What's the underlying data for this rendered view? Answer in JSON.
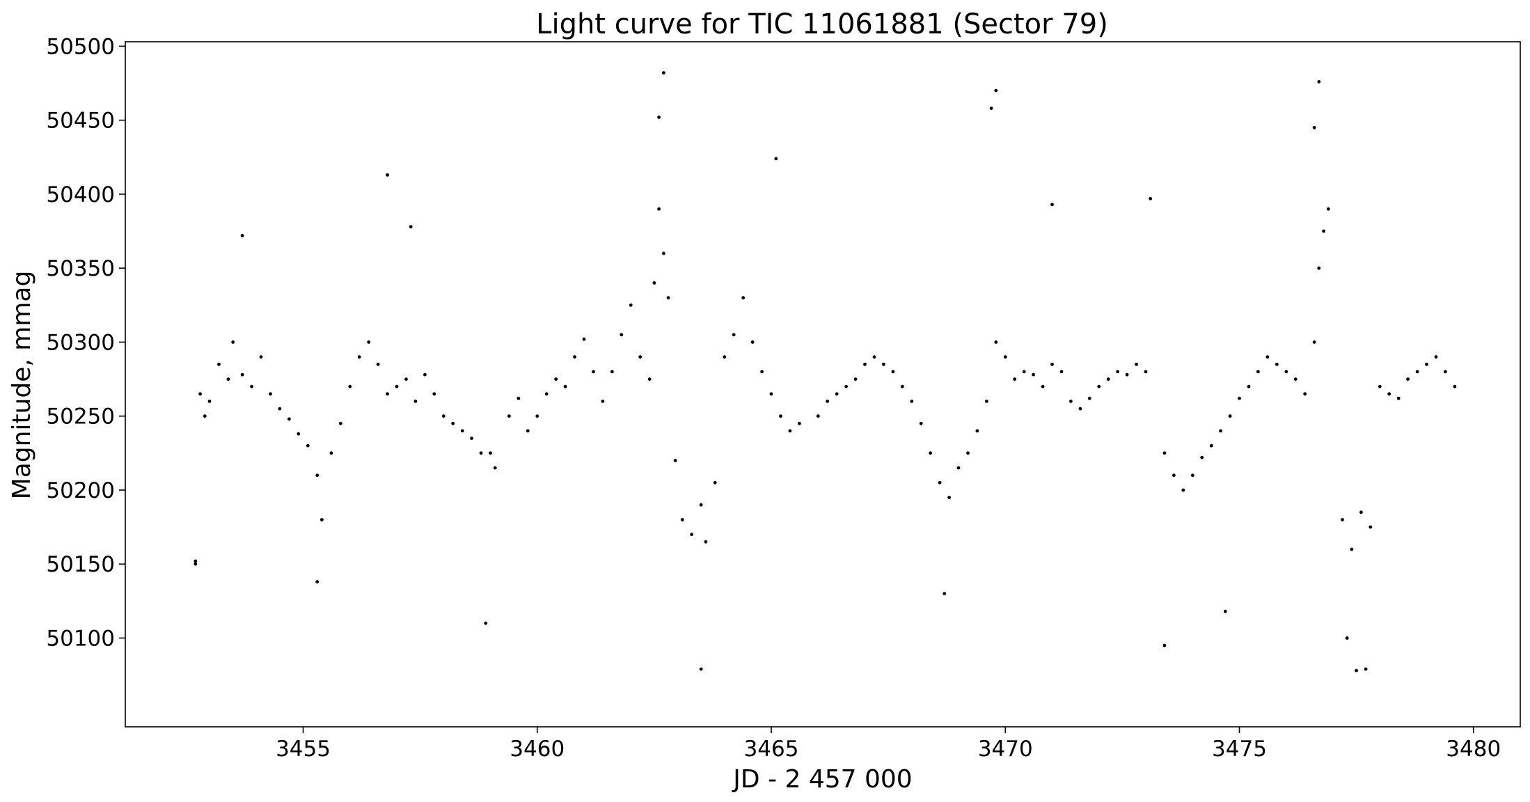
{
  "chart_data": {
    "type": "scatter",
    "title": "Light curve for TIC 11061881 (Sector 79)",
    "xlabel": "JD - 2 457 000",
    "ylabel": "Magnitude, mmag",
    "xlim": [
      3451.2,
      3481.0
    ],
    "ylim": [
      50040,
      50503
    ],
    "x_ticks": [
      3455,
      3460,
      3465,
      3470,
      3475,
      3480
    ],
    "y_ticks": [
      50100,
      50150,
      50200,
      50250,
      50300,
      50350,
      50400,
      50450,
      50500
    ],
    "grid": false,
    "legend": "none",
    "marker_color": "#000000",
    "series": [
      {
        "points": [
          [
            3452.7,
            50152
          ],
          [
            3452.8,
            50265
          ],
          [
            3452.9,
            50250
          ],
          [
            3453.0,
            50260
          ],
          [
            3453.2,
            50285
          ],
          [
            3453.4,
            50275
          ],
          [
            3453.5,
            50300
          ],
          [
            3453.7,
            50278
          ],
          [
            3453.9,
            50270
          ],
          [
            3454.1,
            50290
          ],
          [
            3454.3,
            50265
          ],
          [
            3454.5,
            50255
          ],
          [
            3454.7,
            50248
          ],
          [
            3454.9,
            50238
          ],
          [
            3455.1,
            50230
          ],
          [
            3455.3,
            50210
          ],
          [
            3455.4,
            50180
          ],
          [
            3455.6,
            50225
          ],
          [
            3455.8,
            50245
          ],
          [
            3456.0,
            50270
          ],
          [
            3456.2,
            50290
          ],
          [
            3456.4,
            50300
          ],
          [
            3456.6,
            50285
          ],
          [
            3456.8,
            50265
          ],
          [
            3457.0,
            50270
          ],
          [
            3457.2,
            50275
          ],
          [
            3457.4,
            50260
          ],
          [
            3457.6,
            50278
          ],
          [
            3457.8,
            50265
          ],
          [
            3458.0,
            50250
          ],
          [
            3458.2,
            50245
          ],
          [
            3458.4,
            50240
          ],
          [
            3458.6,
            50235
          ],
          [
            3458.8,
            50225
          ],
          [
            3459.0,
            50225
          ],
          [
            3459.1,
            50215
          ],
          [
            3459.4,
            50250
          ],
          [
            3459.6,
            50262
          ],
          [
            3459.8,
            50240
          ],
          [
            3460.0,
            50250
          ],
          [
            3460.2,
            50265
          ],
          [
            3460.4,
            50275
          ],
          [
            3460.6,
            50270
          ],
          [
            3460.8,
            50290
          ],
          [
            3461.0,
            50302
          ],
          [
            3461.2,
            50280
          ],
          [
            3461.4,
            50260
          ],
          [
            3461.6,
            50280
          ],
          [
            3461.8,
            50305
          ],
          [
            3462.0,
            50325
          ],
          [
            3462.2,
            50290
          ],
          [
            3462.4,
            50275
          ],
          [
            3462.5,
            50340
          ],
          [
            3462.6,
            50390
          ],
          [
            3462.7,
            50360
          ],
          [
            3462.8,
            50330
          ],
          [
            3462.95,
            50220
          ],
          [
            3463.1,
            50180
          ],
          [
            3463.3,
            50170
          ],
          [
            3463.5,
            50190
          ],
          [
            3463.6,
            50165
          ],
          [
            3463.8,
            50205
          ],
          [
            3464.0,
            50290
          ],
          [
            3464.2,
            50305
          ],
          [
            3464.4,
            50330
          ],
          [
            3464.6,
            50300
          ],
          [
            3464.8,
            50280
          ],
          [
            3465.0,
            50265
          ],
          [
            3465.2,
            50250
          ],
          [
            3465.4,
            50240
          ],
          [
            3465.6,
            50245
          ],
          [
            3466.0,
            50250
          ],
          [
            3466.2,
            50260
          ],
          [
            3466.4,
            50265
          ],
          [
            3466.6,
            50270
          ],
          [
            3466.8,
            50275
          ],
          [
            3467.0,
            50285
          ],
          [
            3467.2,
            50290
          ],
          [
            3467.4,
            50285
          ],
          [
            3467.6,
            50280
          ],
          [
            3467.8,
            50270
          ],
          [
            3468.0,
            50260
          ],
          [
            3468.2,
            50245
          ],
          [
            3468.4,
            50225
          ],
          [
            3468.6,
            50205
          ],
          [
            3468.8,
            50195
          ],
          [
            3469.0,
            50215
          ],
          [
            3469.2,
            50225
          ],
          [
            3469.4,
            50240
          ],
          [
            3469.6,
            50260
          ],
          [
            3469.8,
            50300
          ],
          [
            3470.0,
            50290
          ],
          [
            3470.2,
            50275
          ],
          [
            3470.4,
            50280
          ],
          [
            3470.6,
            50278
          ],
          [
            3470.8,
            50270
          ],
          [
            3471.0,
            50285
          ],
          [
            3471.2,
            50280
          ],
          [
            3471.4,
            50260
          ],
          [
            3471.6,
            50255
          ],
          [
            3471.8,
            50262
          ],
          [
            3472.0,
            50270
          ],
          [
            3472.2,
            50275
          ],
          [
            3472.4,
            50280
          ],
          [
            3472.6,
            50278
          ],
          [
            3472.8,
            50285
          ],
          [
            3473.0,
            50280
          ],
          [
            3473.4,
            50225
          ],
          [
            3473.6,
            50210
          ],
          [
            3473.8,
            50200
          ],
          [
            3474.0,
            50210
          ],
          [
            3474.2,
            50222
          ],
          [
            3474.4,
            50230
          ],
          [
            3474.6,
            50240
          ],
          [
            3474.8,
            50250
          ],
          [
            3475.0,
            50262
          ],
          [
            3475.2,
            50270
          ],
          [
            3475.4,
            50280
          ],
          [
            3475.6,
            50290
          ],
          [
            3475.8,
            50285
          ],
          [
            3476.0,
            50280
          ],
          [
            3476.2,
            50275
          ],
          [
            3476.4,
            50265
          ],
          [
            3476.6,
            50300
          ],
          [
            3476.7,
            50350
          ],
          [
            3476.8,
            50375
          ],
          [
            3476.9,
            50390
          ],
          [
            3477.2,
            50180
          ],
          [
            3477.4,
            50160
          ],
          [
            3477.6,
            50185
          ],
          [
            3477.8,
            50175
          ],
          [
            3478.0,
            50270
          ],
          [
            3478.2,
            50265
          ],
          [
            3478.4,
            50262
          ],
          [
            3478.6,
            50275
          ],
          [
            3478.8,
            50280
          ],
          [
            3479.0,
            50285
          ],
          [
            3479.2,
            50290
          ],
          [
            3479.4,
            50280
          ],
          [
            3479.6,
            50270
          ],
          [
            3462.7,
            50482
          ],
          [
            3462.6,
            50452
          ],
          [
            3476.7,
            50476
          ],
          [
            3476.6,
            50445
          ],
          [
            3469.8,
            50470
          ],
          [
            3469.7,
            50458
          ],
          [
            3456.8,
            50413
          ],
          [
            3465.1,
            50424
          ],
          [
            3463.5,
            50079
          ],
          [
            3477.5,
            50078
          ],
          [
            3477.7,
            50079
          ],
          [
            3473.4,
            50095
          ],
          [
            3458.9,
            50110
          ],
          [
            3455.3,
            50138
          ],
          [
            3453.7,
            50372
          ],
          [
            3457.3,
            50378
          ],
          [
            3471.0,
            50393
          ],
          [
            3473.1,
            50397
          ],
          [
            3452.7,
            50150
          ],
          [
            3477.3,
            50100
          ],
          [
            3474.7,
            50118
          ],
          [
            3468.7,
            50130
          ]
        ]
      }
    ]
  }
}
